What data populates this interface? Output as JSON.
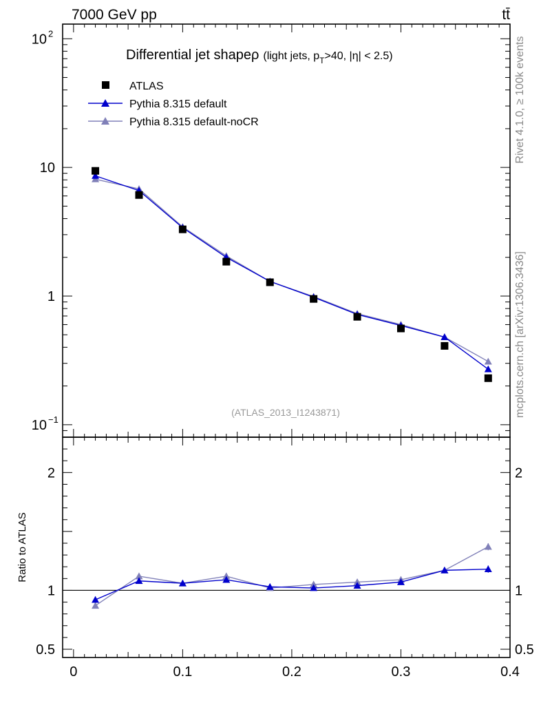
{
  "header": {
    "energy_label": "7000 GeV pp",
    "process_label": "tt̄"
  },
  "side_labels": {
    "rivet": "Rivet 4.1.0, ≥ 100k events",
    "mcplots": "mcplots.cern.ch [arXiv:1306.3436]"
  },
  "chart_data": {
    "type": "line",
    "title_main": "Differential jet shape",
    "title_rho": "ρ",
    "title_sub_prefix": "(light jets, p",
    "title_sub_T": "T",
    "title_sub_suffix": ">40, |η| < 2.5)",
    "analysis_label": "(ATLAS_2013_I1243871)",
    "ratio_ylabel": "Ratio to ATLAS",
    "x": [
      0.02,
      0.06,
      0.1,
      0.14,
      0.18,
      0.22,
      0.26,
      0.3,
      0.34,
      0.38
    ],
    "xlim": [
      -0.01,
      0.4
    ],
    "xticks": [
      {
        "value": 0,
        "label": "0"
      },
      {
        "value": 0.1,
        "label": "0.1"
      },
      {
        "value": 0.2,
        "label": "0.2"
      },
      {
        "value": 0.3,
        "label": "0.3"
      },
      {
        "value": 0.4,
        "label": "0.4"
      }
    ],
    "main": {
      "ylog": true,
      "ylim": [
        0.08,
        130
      ],
      "yticks": [
        {
          "value": 0.1,
          "base": "10",
          "exp": "−1"
        },
        {
          "value": 1,
          "base": "1",
          "exp": ""
        },
        {
          "value": 10,
          "base": "10",
          "exp": ""
        },
        {
          "value": 100,
          "base": "10",
          "exp": "2"
        }
      ]
    },
    "ratio": {
      "ylim": [
        0.43,
        2.3
      ],
      "yticks": [
        {
          "value": 0.5,
          "label": "0.5"
        },
        {
          "value": 1,
          "label": "1"
        },
        {
          "value": 2,
          "label": "2"
        }
      ],
      "reference_line": 1
    },
    "series": [
      {
        "name": "ATLAS",
        "marker": "square",
        "color": "#000000",
        "values": [
          9.4,
          6.1,
          3.3,
          1.85,
          1.28,
          0.95,
          0.69,
          0.56,
          0.41,
          0.23
        ],
        "ratio": [
          1,
          1,
          1,
          1,
          1,
          1,
          1,
          1,
          1,
          1
        ],
        "ratio_err": [
          0,
          0,
          0,
          0,
          0,
          0,
          0,
          0,
          0,
          0
        ]
      },
      {
        "name": "Pythia 8.315 default",
        "marker": "triangle",
        "color": "#0000cc",
        "values": [
          8.6,
          6.6,
          3.4,
          2.0,
          1.3,
          0.98,
          0.72,
          0.59,
          0.48,
          0.27
        ],
        "ratio": [
          0.92,
          1.08,
          1.06,
          1.09,
          1.03,
          1.02,
          1.04,
          1.07,
          1.17,
          1.18
        ],
        "ratio_err": [
          0.01,
          0.01,
          0.01,
          0.015,
          0.02,
          0.02,
          0.02,
          0.02,
          0.02,
          0.03
        ]
      },
      {
        "name": "Pythia 8.315 default-noCR",
        "marker": "triangle",
        "color": "#8080b8",
        "values": [
          8.1,
          6.8,
          3.45,
          2.05,
          1.3,
          0.99,
          0.73,
          0.6,
          0.48,
          0.31
        ],
        "ratio": [
          0.87,
          1.12,
          1.06,
          1.12,
          1.02,
          1.05,
          1.07,
          1.09,
          1.17,
          1.37
        ],
        "ratio_err": [
          0.01,
          0.01,
          0.01,
          0.015,
          0.02,
          0.02,
          0.02,
          0.02,
          0.02,
          0.03
        ]
      }
    ]
  }
}
